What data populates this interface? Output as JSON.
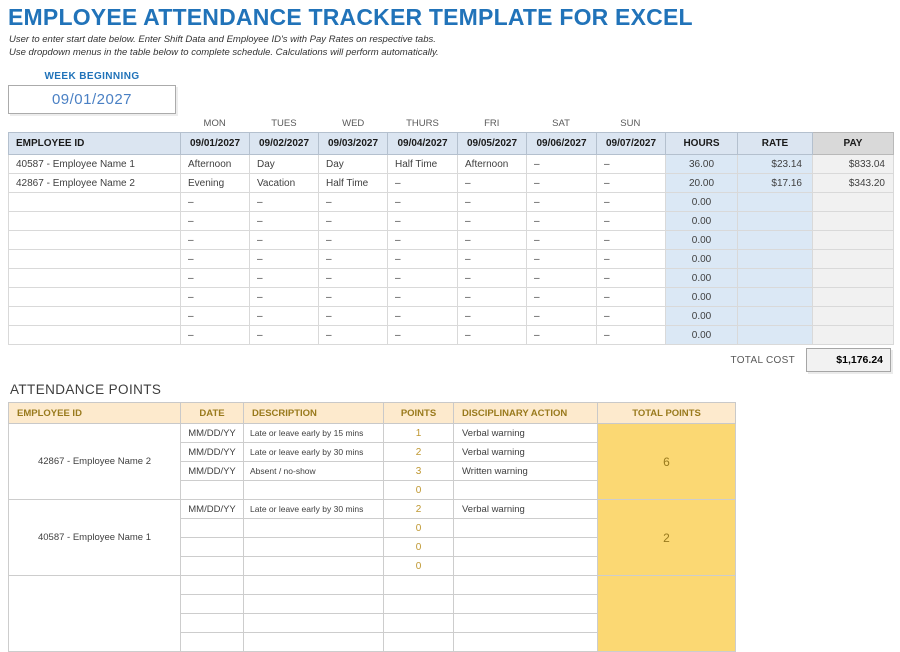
{
  "page": {
    "title": "EMPLOYEE ATTENDANCE TRACKER TEMPLATE FOR EXCEL",
    "instruction_line1": "User to enter start date below.  Enter Shift Data and Employee ID's with Pay Rates on respective tabs.",
    "instruction_line2": "Use dropdown menus in the table below to complete schedule. Calculations will perform automatically."
  },
  "colors": {
    "accent_blue": "#2173b9",
    "header_blue_bg": "#dbe5f1",
    "calc_blue_bg": "#dbe8f5",
    "pay_gray_bg": "#f1f1f1",
    "attendance_header_bg": "#fdeacd",
    "attendance_gold_bg": "#fbd873",
    "attendance_gold_text": "#997a1d",
    "points_gold_text": "#bf9730"
  },
  "week_beginning": {
    "label": "WEEK BEGINNING",
    "value": "09/01/2027"
  },
  "schedule_table": {
    "day_labels": [
      "MON",
      "TUES",
      "WED",
      "THURS",
      "FRI",
      "SAT",
      "SUN"
    ],
    "header": {
      "employee_id": "EMPLOYEE ID",
      "dates": [
        "09/01/2027",
        "09/02/2027",
        "09/03/2027",
        "09/04/2027",
        "09/05/2027",
        "09/06/2027",
        "09/07/2027"
      ],
      "hours": "HOURS",
      "rate": "RATE",
      "pay": "PAY"
    },
    "rows": [
      {
        "employee_id": "40587 - Employee Name 1",
        "shifts": [
          "Afternoon",
          "Day",
          "Day",
          "Half Time",
          "Afternoon",
          "–",
          "–"
        ],
        "hours": "36.00",
        "rate": "$23.14",
        "pay": "$833.04"
      },
      {
        "employee_id": "42867 - Employee Name 2",
        "shifts": [
          "Evening",
          "Vacation",
          "Half Time",
          "–",
          "–",
          "–",
          "–"
        ],
        "hours": "20.00",
        "rate": "$17.16",
        "pay": "$343.20"
      },
      {
        "employee_id": "",
        "shifts": [
          "–",
          "–",
          "–",
          "–",
          "–",
          "–",
          "–"
        ],
        "hours": "0.00",
        "rate": "",
        "pay": ""
      },
      {
        "employee_id": "",
        "shifts": [
          "–",
          "–",
          "–",
          "–",
          "–",
          "–",
          "–"
        ],
        "hours": "0.00",
        "rate": "",
        "pay": ""
      },
      {
        "employee_id": "",
        "shifts": [
          "–",
          "–",
          "–",
          "–",
          "–",
          "–",
          "–"
        ],
        "hours": "0.00",
        "rate": "",
        "pay": ""
      },
      {
        "employee_id": "",
        "shifts": [
          "–",
          "–",
          "–",
          "–",
          "–",
          "–",
          "–"
        ],
        "hours": "0.00",
        "rate": "",
        "pay": ""
      },
      {
        "employee_id": "",
        "shifts": [
          "–",
          "–",
          "–",
          "–",
          "–",
          "–",
          "–"
        ],
        "hours": "0.00",
        "rate": "",
        "pay": ""
      },
      {
        "employee_id": "",
        "shifts": [
          "–",
          "–",
          "–",
          "–",
          "–",
          "–",
          "–"
        ],
        "hours": "0.00",
        "rate": "",
        "pay": ""
      },
      {
        "employee_id": "",
        "shifts": [
          "–",
          "–",
          "–",
          "–",
          "–",
          "–",
          "–"
        ],
        "hours": "0.00",
        "rate": "",
        "pay": ""
      },
      {
        "employee_id": "",
        "shifts": [
          "–",
          "–",
          "–",
          "–",
          "–",
          "–",
          "–"
        ],
        "hours": "0.00",
        "rate": "",
        "pay": ""
      }
    ],
    "total": {
      "label": "TOTAL COST",
      "value": "$1,176.24"
    }
  },
  "attendance_points": {
    "title": "ATTENDANCE POINTS",
    "columns": [
      "EMPLOYEE ID",
      "DATE",
      "DESCRIPTION",
      "POINTS",
      "DISCIPLINARY ACTION",
      "TOTAL POINTS"
    ],
    "groups": [
      {
        "employee_id": "42867 - Employee Name 2",
        "total_points": "6",
        "rows": [
          {
            "date": "MM/DD/YY",
            "description": "Late or leave early by 15 mins",
            "points": "1",
            "action": "Verbal warning"
          },
          {
            "date": "MM/DD/YY",
            "description": "Late or leave early by 30 mins",
            "points": "2",
            "action": "Verbal warning"
          },
          {
            "date": "MM/DD/YY",
            "description": "Absent / no-show",
            "points": "3",
            "action": "Written warning"
          },
          {
            "date": "",
            "description": "",
            "points": "0",
            "action": ""
          }
        ]
      },
      {
        "employee_id": "40587 - Employee Name 1",
        "total_points": "2",
        "rows": [
          {
            "date": "MM/DD/YY",
            "description": "Late or leave early by 30 mins",
            "points": "2",
            "action": "Verbal warning"
          },
          {
            "date": "",
            "description": "",
            "points": "0",
            "action": ""
          },
          {
            "date": "",
            "description": "",
            "points": "0",
            "action": ""
          },
          {
            "date": "",
            "description": "",
            "points": "0",
            "action": ""
          }
        ]
      },
      {
        "employee_id": "",
        "total_points": "",
        "rows": [
          {
            "date": "",
            "description": "",
            "points": "",
            "action": ""
          },
          {
            "date": "",
            "description": "",
            "points": "",
            "action": ""
          },
          {
            "date": "",
            "description": "",
            "points": "",
            "action": ""
          },
          {
            "date": "",
            "description": "",
            "points": "",
            "action": ""
          }
        ]
      }
    ]
  }
}
